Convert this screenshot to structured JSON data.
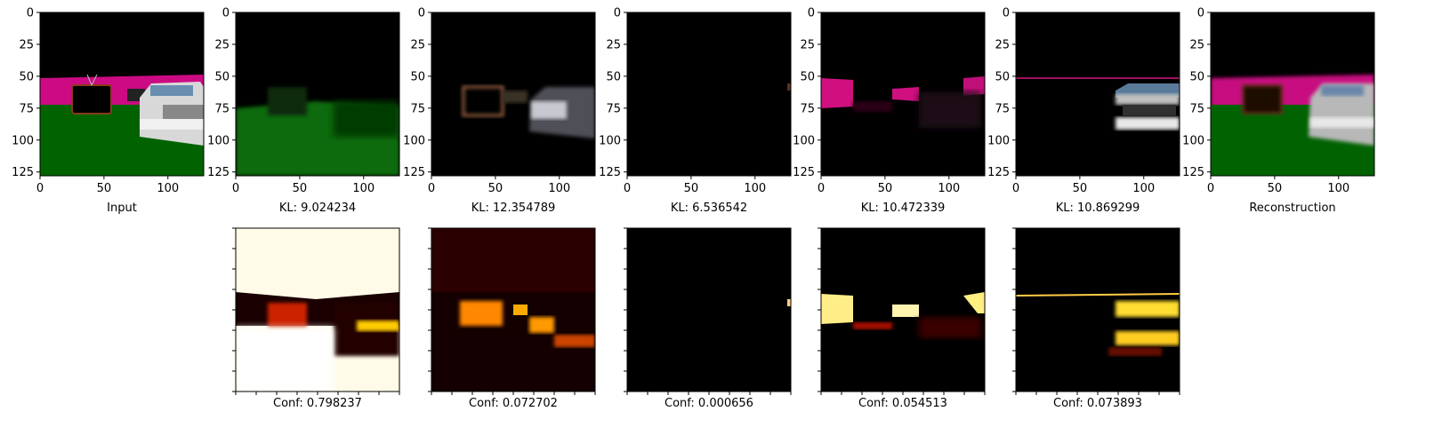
{
  "chart_data": {
    "type": "image-grid",
    "description_layout": "2 rows; row 1: 7 RGB image panels with axes; row 2: 5 heatmap panels",
    "shared_axes": {
      "x_ticks": [
        "0",
        "50",
        "100"
      ],
      "y_ticks": [
        "0",
        "25",
        "50",
        "75",
        "100",
        "125"
      ],
      "xlim": [
        0,
        128
      ],
      "ylim": [
        128,
        0
      ]
    },
    "row1": [
      {
        "label": "Input"
      },
      {
        "label": "KL: 9.024234"
      },
      {
        "label": "KL: 12.354789"
      },
      {
        "label": "KL: 6.536542"
      },
      {
        "label": "KL: 10.472339"
      },
      {
        "label": "KL: 10.869299"
      },
      {
        "label": "Reconstruction"
      }
    ],
    "row2": [
      {
        "label": "Conf: 0.798237",
        "heat_level": 0.8
      },
      {
        "label": "Conf: 0.072702",
        "heat_level": 0.07
      },
      {
        "label": "Conf: 0.000656",
        "heat_level": 0.0
      },
      {
        "label": "Conf: 0.054513",
        "heat_level": 0.05
      },
      {
        "label": "Conf: 0.073893",
        "heat_level": 0.07
      }
    ],
    "heatmap_colormap": "hot"
  }
}
